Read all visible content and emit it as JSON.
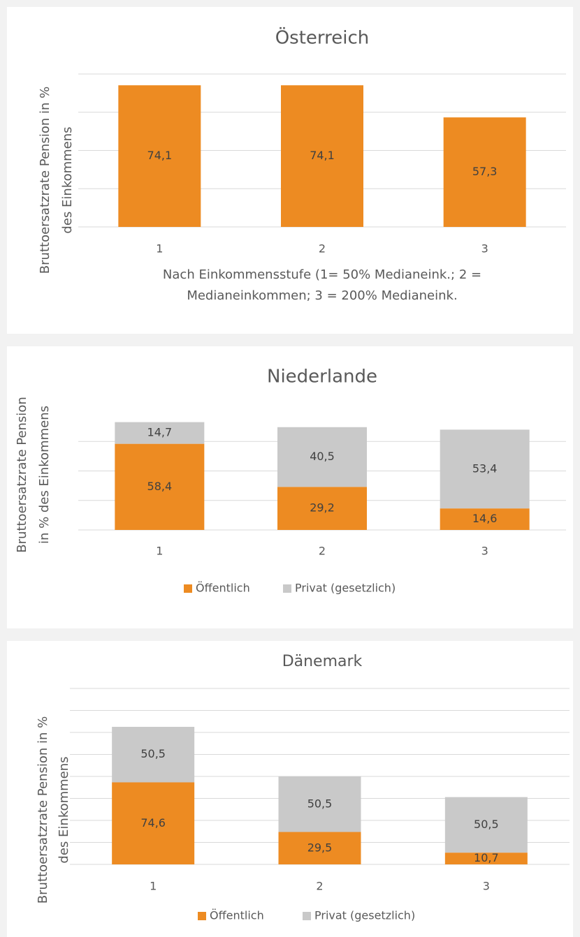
{
  "chart_data": [
    {
      "type": "bar",
      "title": "Österreich",
      "y_label": [
        "Bruttoersatzrate Pension in %",
        "des Einkommens"
      ],
      "x_label": [
        "Nach Einkommensstufe (1= 50% Medianeink.; 2 =",
        "Medianeinkommen; 3 = 200% Medianeink."
      ],
      "categories": [
        "1",
        "2",
        "3"
      ],
      "values": [
        74.1,
        74.1,
        57.3
      ],
      "value_labels": [
        "74,1",
        "74,1",
        "57,3"
      ],
      "color": "#ed8b22",
      "ylim": [
        0,
        80
      ],
      "yticks": [
        0,
        20,
        40,
        60,
        80
      ],
      "ytick_labels": false,
      "grid": true
    },
    {
      "type": "stacked-bar",
      "title": "Niederlande",
      "y_label": [
        "Bruttoersatzrate Pension",
        "in % des Einkommens"
      ],
      "categories": [
        "1",
        "2",
        "3"
      ],
      "series": [
        {
          "name": "Öffentlich",
          "color": "#ed8b22",
          "values": [
            58.4,
            29.2,
            14.6
          ],
          "value_labels": [
            "58,4",
            "29,2",
            "14,6"
          ]
        },
        {
          "name": "Privat (gesetzlich)",
          "color": "#c9c9c9",
          "values": [
            14.7,
            40.5,
            53.4
          ],
          "value_labels": [
            "14,7",
            "40,5",
            "53,4"
          ]
        }
      ],
      "ylim": [
        0,
        80
      ],
      "yticks": [
        0,
        20,
        40,
        60
      ],
      "ytick_labels": false,
      "grid": true,
      "legend": "bottom"
    },
    {
      "type": "stacked-bar",
      "title": "Dänemark",
      "y_label": [
        "Bruttoersatzrate Pension in %",
        "des Einkommens"
      ],
      "categories": [
        "1",
        "2",
        "3"
      ],
      "series": [
        {
          "name": "Öffentlich",
          "color": "#ed8b22",
          "values": [
            74.6,
            29.5,
            10.7
          ],
          "value_labels": [
            "74,6",
            "29,5",
            "10,7"
          ]
        },
        {
          "name": "Privat (gesetzlich)",
          "color": "#c9c9c9",
          "values": [
            50.5,
            50.5,
            50.5
          ],
          "value_labels": [
            "50,5",
            "50,5",
            "50,5"
          ]
        }
      ],
      "ylim": [
        0,
        160
      ],
      "yticks": [
        0,
        20,
        40,
        60,
        80,
        100,
        120,
        140,
        160
      ],
      "ytick_labels": false,
      "grid": true,
      "legend": "bottom"
    }
  ]
}
